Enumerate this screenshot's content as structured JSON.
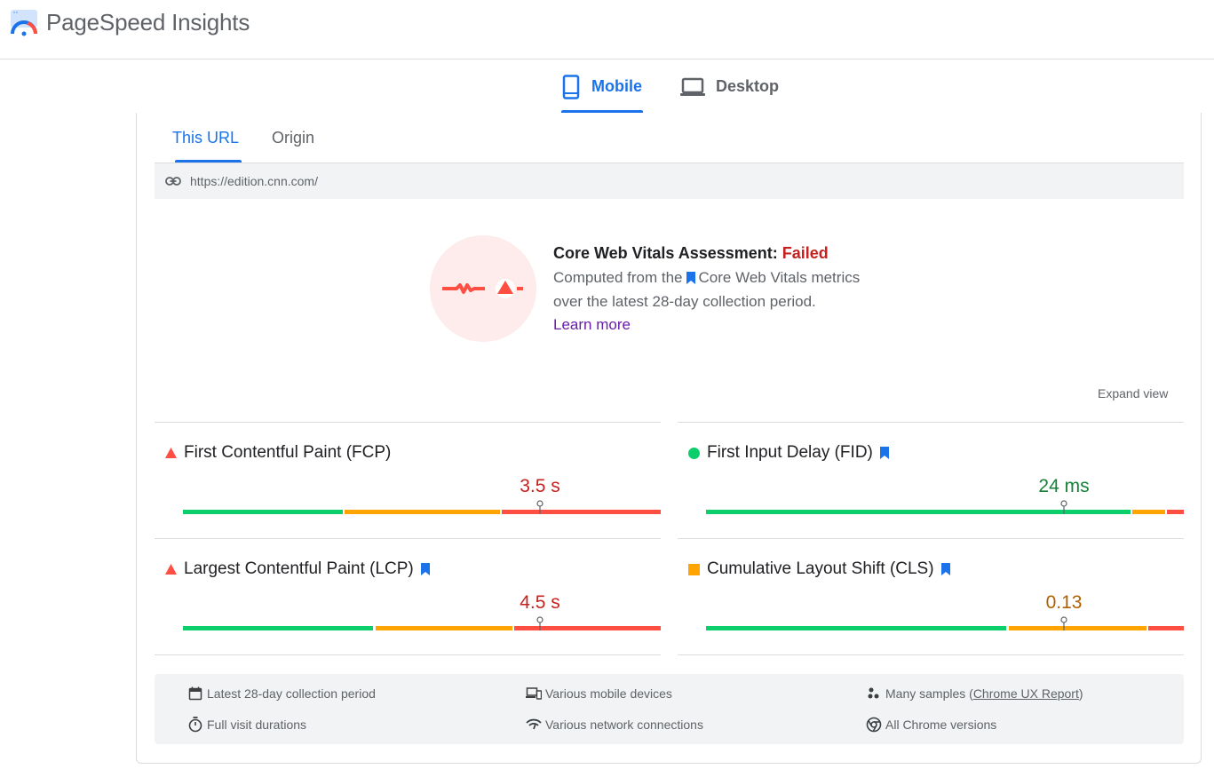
{
  "header": {
    "brand": "PageSpeed Insights"
  },
  "device_tabs": {
    "mobile": "Mobile",
    "desktop": "Desktop"
  },
  "sub_tabs": {
    "this_url": "This URL",
    "origin": "Origin"
  },
  "url": "https://edition.cnn.com/",
  "assessment": {
    "title": "Core Web Vitals Assessment: ",
    "status": "Failed",
    "line1_a": "Computed from the",
    "line1_b": "Core Web Vitals metrics",
    "line2": "over the latest 28-day collection period.",
    "learn_more": "Learn more",
    "expand_view": "Expand view"
  },
  "metrics": {
    "fcp": {
      "label": "First Contentful Paint (FCP)",
      "value": "3.5 s",
      "status": "poor"
    },
    "fid": {
      "label": "First Input Delay (FID)",
      "value": "24 ms",
      "status": "good"
    },
    "lcp": {
      "label": "Largest Contentful Paint (LCP)",
      "value": "4.5 s",
      "status": "poor"
    },
    "cls": {
      "label": "Cumulative Layout Shift (CLS)",
      "value": "0.13",
      "status": "needs-improvement"
    }
  },
  "info": {
    "period": "Latest 28-day collection period",
    "durations": "Full visit durations",
    "devices": "Various mobile devices",
    "network": "Various network connections",
    "samples_prefix": "Many samples (",
    "samples_link": "Chrome UX Report",
    "samples_suffix": ")",
    "chrome": "All Chrome versions"
  },
  "colors": {
    "good": "#0cce6b",
    "average": "#ffa400",
    "poor": "#ff4e42",
    "accent": "#1a73e8",
    "failed": "#c5221f"
  }
}
